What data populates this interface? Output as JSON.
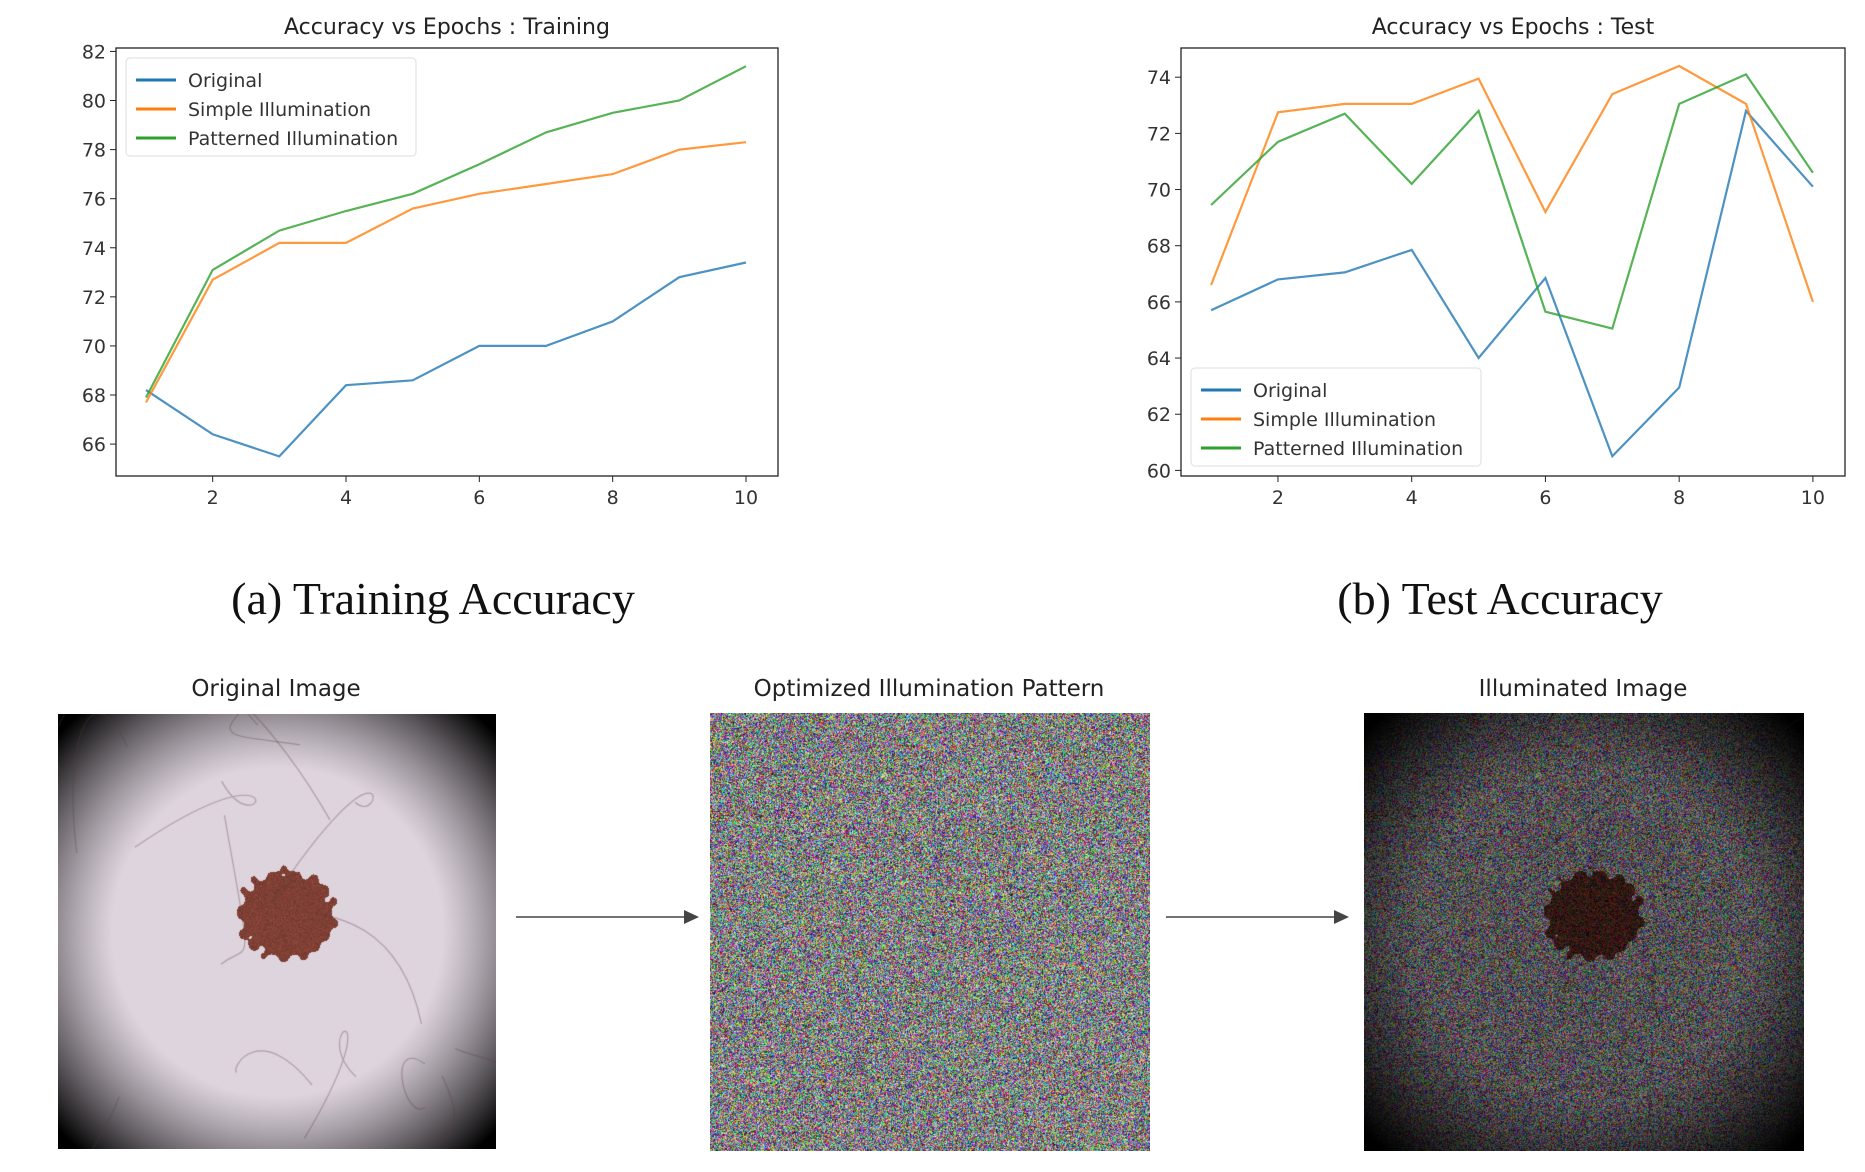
{
  "captions": {
    "a": "(a) Training Accuracy",
    "b": "(b) Test Accuracy"
  },
  "images": {
    "original_title": "Original Image",
    "pattern_title": "Optimized Illumination Pattern",
    "illuminated_title": "Illuminated Image"
  },
  "colors": {
    "Original": "#1f77b4",
    "Simple Illumination": "#ff7f0e",
    "Patterned Illumination": "#2ca02c"
  },
  "chart_data": [
    {
      "type": "line",
      "title": "Accuracy vs Epochs : Training",
      "xlabel": "",
      "ylabel": "",
      "x": [
        1,
        2,
        3,
        4,
        5,
        6,
        7,
        8,
        9,
        10
      ],
      "xticks": [
        2,
        4,
        6,
        8,
        10
      ],
      "yticks": [
        66,
        68,
        70,
        72,
        74,
        76,
        78,
        80,
        82
      ],
      "xlim": [
        0.55,
        10.48
      ],
      "ylim": [
        64.7,
        82.14
      ],
      "legend": "upper-left",
      "grid": false,
      "series": [
        {
          "name": "Original",
          "values": [
            68.2,
            66.4,
            65.5,
            68.4,
            68.6,
            70.0,
            70.0,
            71.0,
            72.8,
            73.4
          ]
        },
        {
          "name": "Simple Illumination",
          "values": [
            67.7,
            72.7,
            74.2,
            74.2,
            75.6,
            76.2,
            76.6,
            77.0,
            78.0,
            78.3
          ]
        },
        {
          "name": "Patterned Illumination",
          "values": [
            67.9,
            73.1,
            74.7,
            75.5,
            76.2,
            77.4,
            78.7,
            79.5,
            80.0,
            81.4
          ]
        }
      ]
    },
    {
      "type": "line",
      "title": "Accuracy vs Epochs : Test",
      "xlabel": "",
      "ylabel": "",
      "x": [
        1,
        2,
        3,
        4,
        5,
        6,
        7,
        8,
        9,
        10
      ],
      "xticks": [
        2,
        4,
        6,
        8,
        10
      ],
      "yticks": [
        60,
        62,
        64,
        66,
        68,
        70,
        72,
        74
      ],
      "xlim": [
        0.55,
        10.48
      ],
      "ylim": [
        59.8,
        75.04
      ],
      "legend": "lower-left",
      "grid": false,
      "series": [
        {
          "name": "Original",
          "values": [
            65.7,
            66.8,
            67.05,
            67.85,
            64.0,
            66.85,
            60.5,
            62.95,
            72.8,
            70.1
          ]
        },
        {
          "name": "Simple Illumination",
          "values": [
            66.6,
            72.75,
            73.05,
            73.05,
            73.95,
            69.2,
            73.4,
            74.4,
            73.05,
            66.0
          ]
        },
        {
          "name": "Patterned Illumination",
          "values": [
            69.45,
            71.7,
            72.7,
            70.2,
            72.8,
            65.65,
            65.05,
            73.05,
            74.1,
            70.6
          ]
        }
      ]
    }
  ]
}
